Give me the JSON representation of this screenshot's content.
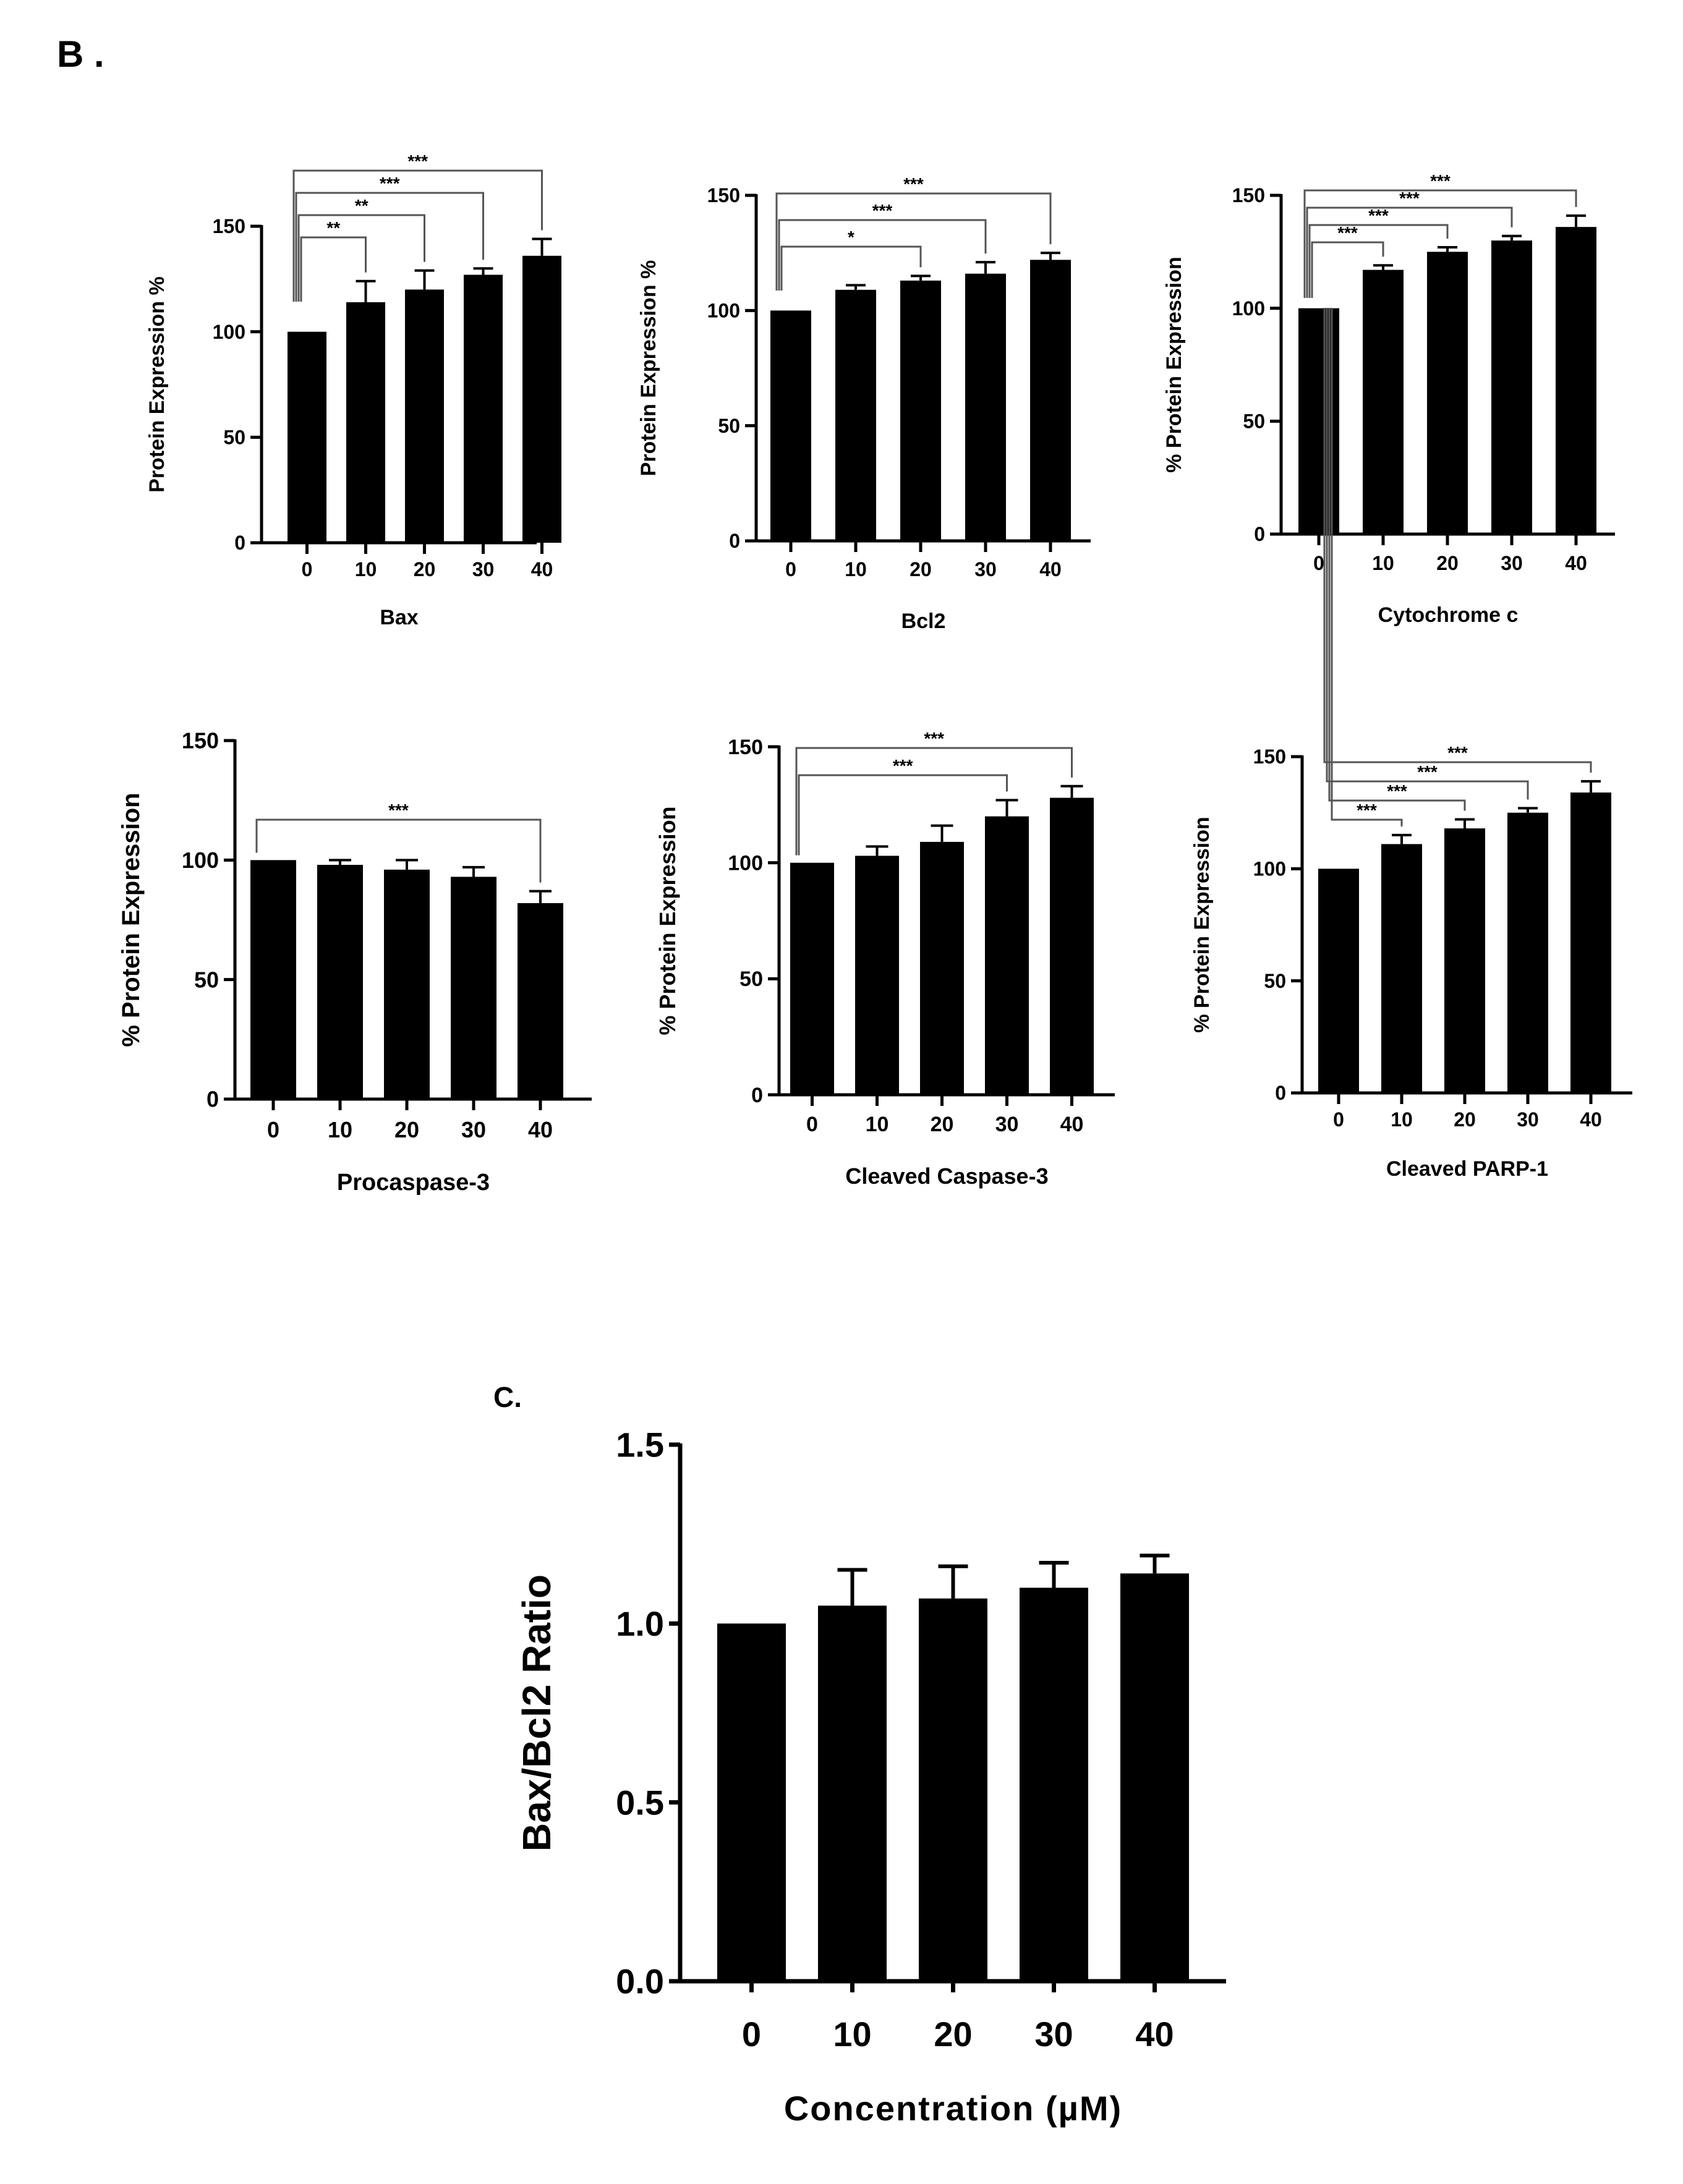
{
  "colors": {
    "bar": "#000000",
    "axis": "#000000",
    "bracket": "#555555",
    "background": "#ffffff"
  },
  "panel_labels": {
    "b": "B .",
    "c": "C."
  },
  "chart_data": [
    {
      "id": "bax",
      "type": "bar",
      "title": "",
      "xlabel": "Bax",
      "ylabel": "Protein Expression %",
      "categories": [
        "0",
        "10",
        "20",
        "30",
        "40"
      ],
      "values": [
        100,
        114,
        120,
        127,
        136
      ],
      "errors": [
        0,
        10,
        9,
        3,
        8
      ],
      "ylim": [
        0,
        150
      ],
      "yticks": [
        0,
        50,
        100,
        150
      ],
      "ytick_labels": [
        "0",
        "50",
        "100",
        "150"
      ],
      "grid": false,
      "annotations": [
        {
          "from": 0,
          "to": 1,
          "label": "**"
        },
        {
          "from": 0,
          "to": 2,
          "label": "**"
        },
        {
          "from": 0,
          "to": 3,
          "label": "***"
        },
        {
          "from": 0,
          "to": 4,
          "label": "***"
        }
      ]
    },
    {
      "id": "bcl2",
      "type": "bar",
      "title": "",
      "xlabel": "Bcl2",
      "ylabel": "Protein Expression %",
      "categories": [
        "0",
        "10",
        "20",
        "30",
        "40"
      ],
      "values": [
        100,
        109,
        113,
        116,
        122
      ],
      "errors": [
        0,
        2,
        2,
        5,
        3
      ],
      "ylim": [
        0,
        150
      ],
      "yticks": [
        0,
        50,
        100,
        150
      ],
      "ytick_labels": [
        "0",
        "50",
        "100",
        "150"
      ],
      "grid": false,
      "annotations": [
        {
          "from": 0,
          "to": 2,
          "label": "*"
        },
        {
          "from": 0,
          "to": 3,
          "label": "***"
        },
        {
          "from": 0,
          "to": 4,
          "label": "***"
        }
      ]
    },
    {
      "id": "cytochrome-c",
      "type": "bar",
      "title": "",
      "xlabel": "Cytochrome c",
      "ylabel": "% Protein Expression",
      "categories": [
        "0",
        "10",
        "20",
        "30",
        "40"
      ],
      "values": [
        100,
        117,
        125,
        130,
        136
      ],
      "errors": [
        0,
        2,
        2,
        2,
        5
      ],
      "ylim": [
        0,
        150
      ],
      "yticks": [
        0,
        50,
        100,
        150
      ],
      "ytick_labels": [
        "0",
        "50",
        "100",
        "150"
      ],
      "grid": false,
      "annotations": [
        {
          "from": 0,
          "to": 1,
          "label": "***"
        },
        {
          "from": 0,
          "to": 2,
          "label": "***"
        },
        {
          "from": 0,
          "to": 3,
          "label": "***"
        },
        {
          "from": 0,
          "to": 4,
          "label": "***"
        }
      ]
    },
    {
      "id": "procaspase-3",
      "type": "bar",
      "title": "",
      "xlabel": "Procaspase-3",
      "ylabel": "% Protein Expression",
      "categories": [
        "0",
        "10",
        "20",
        "30",
        "40"
      ],
      "values": [
        100,
        98,
        96,
        93,
        82
      ],
      "errors": [
        0,
        2,
        4,
        4,
        5
      ],
      "ylim": [
        0,
        150
      ],
      "yticks": [
        0,
        50,
        100,
        150
      ],
      "ytick_labels": [
        "0",
        "50",
        "100",
        "150"
      ],
      "grid": false,
      "annotations": [
        {
          "from": 0,
          "to": 4,
          "label": "***"
        }
      ]
    },
    {
      "id": "cleaved-caspase-3",
      "type": "bar",
      "title": "",
      "xlabel": "Cleaved Caspase-3",
      "ylabel": "% Protein Expression",
      "categories": [
        "0",
        "10",
        "20",
        "30",
        "40"
      ],
      "values": [
        100,
        103,
        109,
        120,
        128
      ],
      "errors": [
        0,
        4,
        7,
        7,
        5
      ],
      "ylim": [
        0,
        150
      ],
      "yticks": [
        0,
        50,
        100,
        150
      ],
      "ytick_labels": [
        "0",
        "50",
        "100",
        "150"
      ],
      "grid": false,
      "annotations": [
        {
          "from": 0,
          "to": 3,
          "label": "***"
        },
        {
          "from": 0,
          "to": 4,
          "label": "***"
        }
      ]
    },
    {
      "id": "cleaved-parp-1",
      "type": "bar",
      "title": "",
      "xlabel": "Cleaved PARP-1",
      "ylabel": "% Protein Expression",
      "categories": [
        "0",
        "10",
        "20",
        "30",
        "40"
      ],
      "values": [
        100,
        111,
        118,
        125,
        134
      ],
      "errors": [
        0,
        4,
        4,
        2,
        5
      ],
      "ylim": [
        0,
        150
      ],
      "yticks": [
        0,
        50,
        100,
        150
      ],
      "ytick_labels": [
        "0",
        "50",
        "100",
        "150"
      ],
      "grid": false,
      "annotations": [
        {
          "from": 0,
          "to": 1,
          "label": "***"
        },
        {
          "from": 0,
          "to": 2,
          "label": "***"
        },
        {
          "from": 0,
          "to": 3,
          "label": "***"
        },
        {
          "from": 0,
          "to": 4,
          "label": "***"
        }
      ]
    },
    {
      "id": "bax-bcl2-ratio",
      "type": "bar",
      "title": "",
      "xlabel": "Concentration (µM)",
      "ylabel": "Bax/Bcl2 Ratio",
      "categories": [
        "0",
        "10",
        "20",
        "30",
        "40"
      ],
      "values": [
        1.0,
        1.05,
        1.07,
        1.1,
        1.14
      ],
      "errors": [
        0,
        0.1,
        0.09,
        0.07,
        0.05
      ],
      "ylim": [
        0,
        1.5
      ],
      "yticks": [
        0,
        0.5,
        1.0,
        1.5
      ],
      "ytick_labels": [
        "0.0",
        "0.5",
        "1.0",
        "1.5"
      ],
      "grid": false,
      "annotations": []
    }
  ]
}
